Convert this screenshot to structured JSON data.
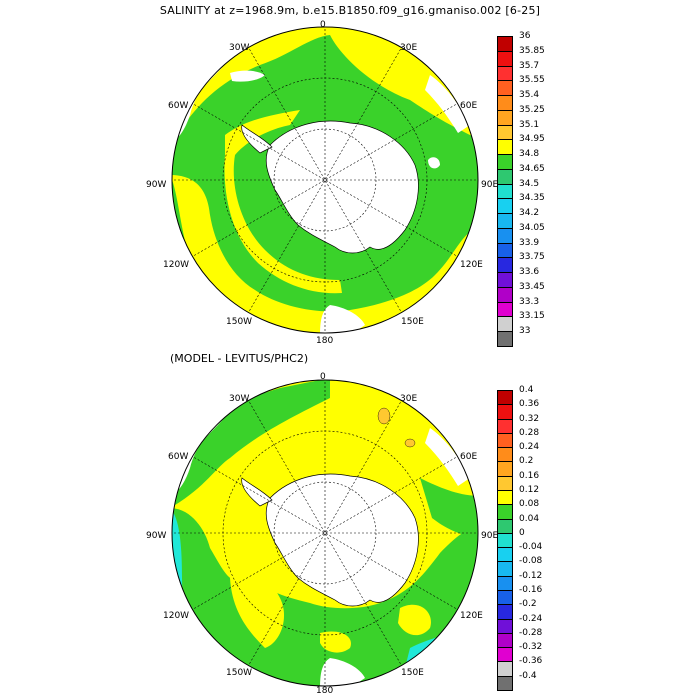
{
  "title": "SALINITY at z=1968.9m, b.e15.B1850.f09_g16.gmaniso.002 [6-25]",
  "subtitle": "(MODEL - LEVITUS/PHC2)",
  "longitude_labels": {
    "top": "0",
    "top_left": "30W",
    "top_right": "30E",
    "upper_left": "60W",
    "upper_right": "60E",
    "left": "90W",
    "right": "90E",
    "lower_left": "120W",
    "lower_right": "120E",
    "bottom_left": "150W",
    "bottom_right": "150E",
    "bottom": "180"
  },
  "colorbar_top": {
    "labels": [
      "36",
      "35.85",
      "35.7",
      "35.55",
      "35.4",
      "35.25",
      "35.1",
      "34.95",
      "34.8",
      "34.65",
      "34.5",
      "34.35",
      "34.2",
      "34.05",
      "33.9",
      "33.75",
      "33.6",
      "33.45",
      "33.3",
      "33.15",
      "33"
    ],
    "colors": [
      "#c00000",
      "#ee1010",
      "#ff3030",
      "#ff6020",
      "#ff8c1a",
      "#ffa520",
      "#ffc830",
      "#ffff00",
      "#3ad22a",
      "#2ec870",
      "#20e0d0",
      "#18d0f0",
      "#18b8f0",
      "#1890f0",
      "#1860e8",
      "#2828e0",
      "#7010d8",
      "#b000c8",
      "#e000d0",
      "#d0d0d0",
      "#707070"
    ]
  },
  "colorbar_bottom": {
    "labels": [
      "0.4",
      "0.36",
      "0.32",
      "0.28",
      "0.24",
      "0.2",
      "0.16",
      "0.12",
      "0.08",
      "0.04",
      "0",
      "-0.04",
      "-0.08",
      "-0.12",
      "-0.16",
      "-0.2",
      "-0.24",
      "-0.28",
      "-0.32",
      "-0.36",
      "-0.4"
    ],
    "colors": [
      "#c00000",
      "#ee1010",
      "#ff3030",
      "#ff6020",
      "#ff8c1a",
      "#ffa520",
      "#ffc830",
      "#ffff00",
      "#3ad22a",
      "#2ec870",
      "#20e0d0",
      "#18d0f0",
      "#18b8f0",
      "#1890f0",
      "#1860e8",
      "#2828e0",
      "#7010d8",
      "#b000c8",
      "#e000d0",
      "#d0d0d0",
      "#707070"
    ]
  },
  "colors": {
    "land": "#ffffff",
    "yellow_field": "#ffff00",
    "green_field": "#3ad22a",
    "cyan_field": "#20e8d8"
  }
}
